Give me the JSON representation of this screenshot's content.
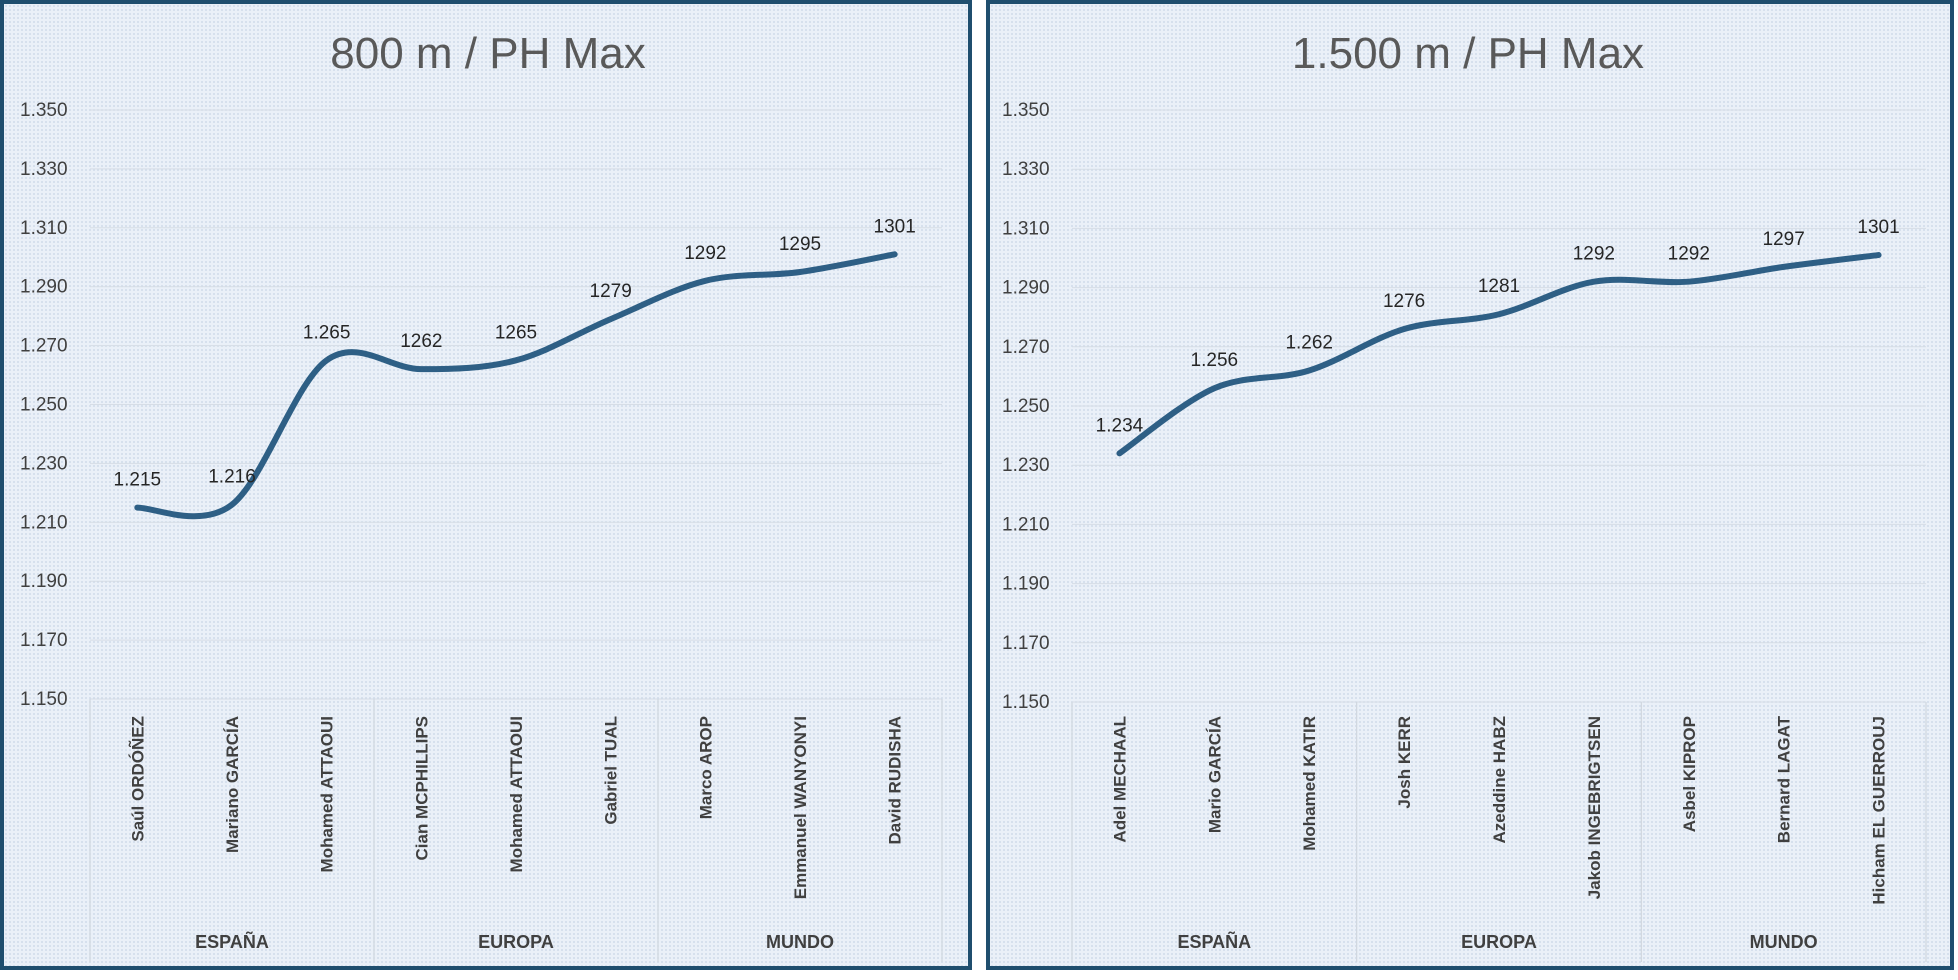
{
  "chart_data": [
    {
      "type": "line",
      "title": "800 m / PH Max",
      "xlabel": "",
      "ylabel": "",
      "ylim": [
        1150,
        1350
      ],
      "yticks": [
        1150,
        1170,
        1190,
        1210,
        1230,
        1250,
        1270,
        1290,
        1310,
        1330,
        1350
      ],
      "ytick_labels": [
        "1.150",
        "1.170",
        "1.190",
        "1.210",
        "1.230",
        "1.250",
        "1.270",
        "1.290",
        "1.310",
        "1.330",
        "1.350"
      ],
      "grid": true,
      "smooth": true,
      "line_color": "#2e5f85",
      "categories": [
        "Saúl ORDÓÑEZ",
        "Mariano GARCÍA",
        "Mohamed ATTAOUI",
        "Cian MCPHILLIPS",
        "Mohamed ATTAOUI",
        "Gabriel TUAL",
        "Marco AROP",
        "Emmanuel WANYONYI",
        "David RUDISHA"
      ],
      "groups": [
        {
          "name": "ESPAÑA",
          "count": 3
        },
        {
          "name": "EUROPA",
          "count": 3
        },
        {
          "name": "MUNDO",
          "count": 3
        }
      ],
      "values": [
        1215,
        1216,
        1265,
        1262,
        1265,
        1279,
        1292,
        1295,
        1301
      ],
      "data_labels": [
        "1.215",
        "1.216",
        "1.265",
        "1262",
        "1265",
        "1279",
        "1292",
        "1295",
        "1301"
      ]
    },
    {
      "type": "line",
      "title": "1.500 m / PH Max",
      "xlabel": "",
      "ylabel": "",
      "ylim": [
        1150,
        1350
      ],
      "yticks": [
        1150,
        1170,
        1190,
        1210,
        1230,
        1250,
        1270,
        1290,
        1310,
        1330,
        1350
      ],
      "ytick_labels": [
        "1.150",
        "1.170",
        "1.190",
        "1.210",
        "1.230",
        "1.250",
        "1.270",
        "1.290",
        "1.310",
        "1.330",
        "1.350"
      ],
      "grid": true,
      "smooth": true,
      "line_color": "#2e5f85",
      "categories": [
        "Adel MECHAAL",
        "Mario GARCÍA",
        "Mohamed KATIR",
        "Josh KERR",
        "Azeddine HABZ",
        "Jakob INGEBRIGTSEN",
        "Asbel KIPROP",
        "Bernard LAGAT",
        "Hicham EL GUERROUJ"
      ],
      "groups": [
        {
          "name": "ESPAÑA",
          "count": 3
        },
        {
          "name": "EUROPA",
          "count": 3
        },
        {
          "name": "MUNDO",
          "count": 3
        }
      ],
      "values": [
        1234,
        1256,
        1262,
        1276,
        1281,
        1292,
        1292,
        1297,
        1301
      ],
      "data_labels": [
        "1.234",
        "1.256",
        "1.262",
        "1276",
        "1281",
        "1292",
        "1292",
        "1297",
        "1301"
      ]
    }
  ]
}
